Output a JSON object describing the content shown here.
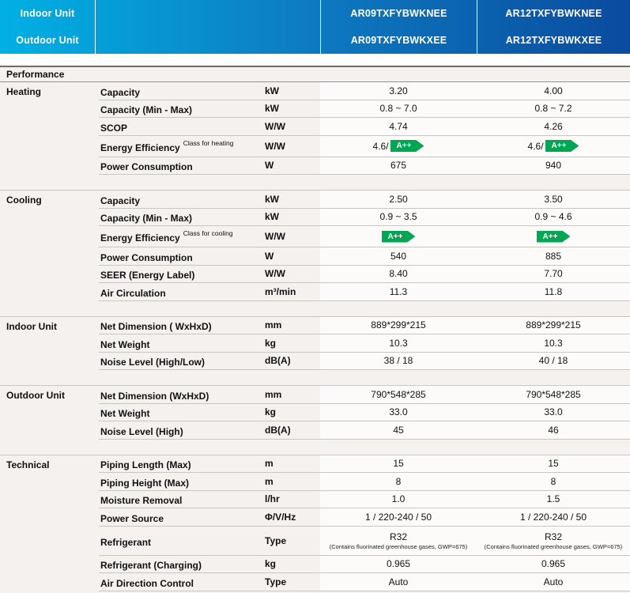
{
  "header": {
    "row1_label": "Indoor Unit",
    "row2_label": "Outdoor Unit",
    "products": [
      {
        "indoor_model": "AR09TXFYBWKNEE",
        "outdoor_model": "AR09TXFYBWKXEE"
      },
      {
        "indoor_model": "AR12TXFYBWKNEE",
        "outdoor_model": "AR12TXFYBWKXEE"
      }
    ],
    "gradient_left": "#00b0e4",
    "gradient_right": "#0a4b9f"
  },
  "table": {
    "section_header": "Performance",
    "badge_color": "#00a651",
    "sections": [
      {
        "name": "Heating",
        "rows": [
          {
            "label": "Capacity",
            "unit": "kW",
            "values": [
              "3.20",
              "4.00"
            ]
          },
          {
            "label": "Capacity (Min - Max)",
            "unit": "kW",
            "values": [
              "0.8 ~ 7.0",
              "0.8 ~ 7.2"
            ]
          },
          {
            "label": "SCOP",
            "unit": "W/W",
            "values": [
              "4.74",
              "4.26"
            ]
          },
          {
            "label": "Energy Efficiency",
            "sublabel": "Class for heating",
            "unit": "W/W",
            "values": [
              {
                "prefix": "4.6/",
                "badge": "A++"
              },
              {
                "prefix": "4.6/",
                "badge": "A++"
              }
            ]
          },
          {
            "label": "Power Consumption",
            "unit": "W",
            "values": [
              "675",
              "940"
            ]
          }
        ]
      },
      {
        "name": "Cooling",
        "rows": [
          {
            "label": "Capacity",
            "unit": "kW",
            "values": [
              "2.50",
              "3.50"
            ]
          },
          {
            "label": "Capacity (Min - Max)",
            "unit": "kW",
            "values": [
              "0.9 ~ 3.5",
              "0.9 ~ 4.6"
            ]
          },
          {
            "label": "Energy Efficiency",
            "sublabel": "Class for cooling",
            "unit": "W/W",
            "values": [
              {
                "badge": "A++"
              },
              {
                "badge": "A++"
              }
            ]
          },
          {
            "label": "Power Consumption",
            "unit": "W",
            "values": [
              "540",
              "885"
            ]
          },
          {
            "label": "SEER (Energy Label)",
            "unit": "W/W",
            "values": [
              "8.40",
              "7.70"
            ]
          },
          {
            "label": "Air Circulation",
            "unit": "m³/min",
            "values": [
              "11.3",
              "11.8"
            ]
          }
        ]
      },
      {
        "name": "Indoor Unit",
        "rows": [
          {
            "label": "Net Dimension ( WxHxD)",
            "unit": "mm",
            "values": [
              "889*299*215",
              "889*299*215"
            ]
          },
          {
            "label": "Net Weight",
            "unit": "kg",
            "values": [
              "10.3",
              "10.3"
            ]
          },
          {
            "label": "Noise Level (High/Low)",
            "unit": "dB(A)",
            "values": [
              "38 / 18",
              "40 / 18"
            ]
          }
        ]
      },
      {
        "name": "Outdoor Unit",
        "rows": [
          {
            "label": "Net Dimension (WxHxD)",
            "unit": "mm",
            "values": [
              "790*548*285",
              "790*548*285"
            ]
          },
          {
            "label": "Net Weight",
            "unit": "kg",
            "values": [
              "33.0",
              "33.0"
            ]
          },
          {
            "label": "Noise Level (High)",
            "unit": "dB(A)",
            "values": [
              "45",
              "46"
            ]
          }
        ]
      },
      {
        "name": "Technical",
        "rows": [
          {
            "label": "Piping Length (Max)",
            "unit": "m",
            "values": [
              "15",
              "15"
            ]
          },
          {
            "label": "Piping Height (Max)",
            "unit": "m",
            "values": [
              "8",
              "8"
            ]
          },
          {
            "label": "Moisture Removal",
            "unit": "l/hr",
            "values": [
              "1.0",
              "1.5"
            ]
          },
          {
            "label": "Power Source",
            "unit": "Φ/V/Hz",
            "values": [
              "1 / 220-240 / 50",
              "1 / 220-240 / 50"
            ]
          },
          {
            "label": "Refrigerant",
            "unit": "Type",
            "values": [
              {
                "main": "R32",
                "note": "(Contains fluorinated greenhouse gases, GWP=675)"
              },
              {
                "main": "R32",
                "note": "(Contains fluorinated greenhouse gases, GWP=675)"
              }
            ]
          },
          {
            "label": "Refrigerant (Charging)",
            "unit": "kg",
            "values": [
              "0.965",
              "0.965"
            ]
          },
          {
            "label": "Air Direction Control",
            "unit": "Type",
            "values": [
              "Auto",
              "Auto"
            ]
          }
        ]
      }
    ]
  }
}
